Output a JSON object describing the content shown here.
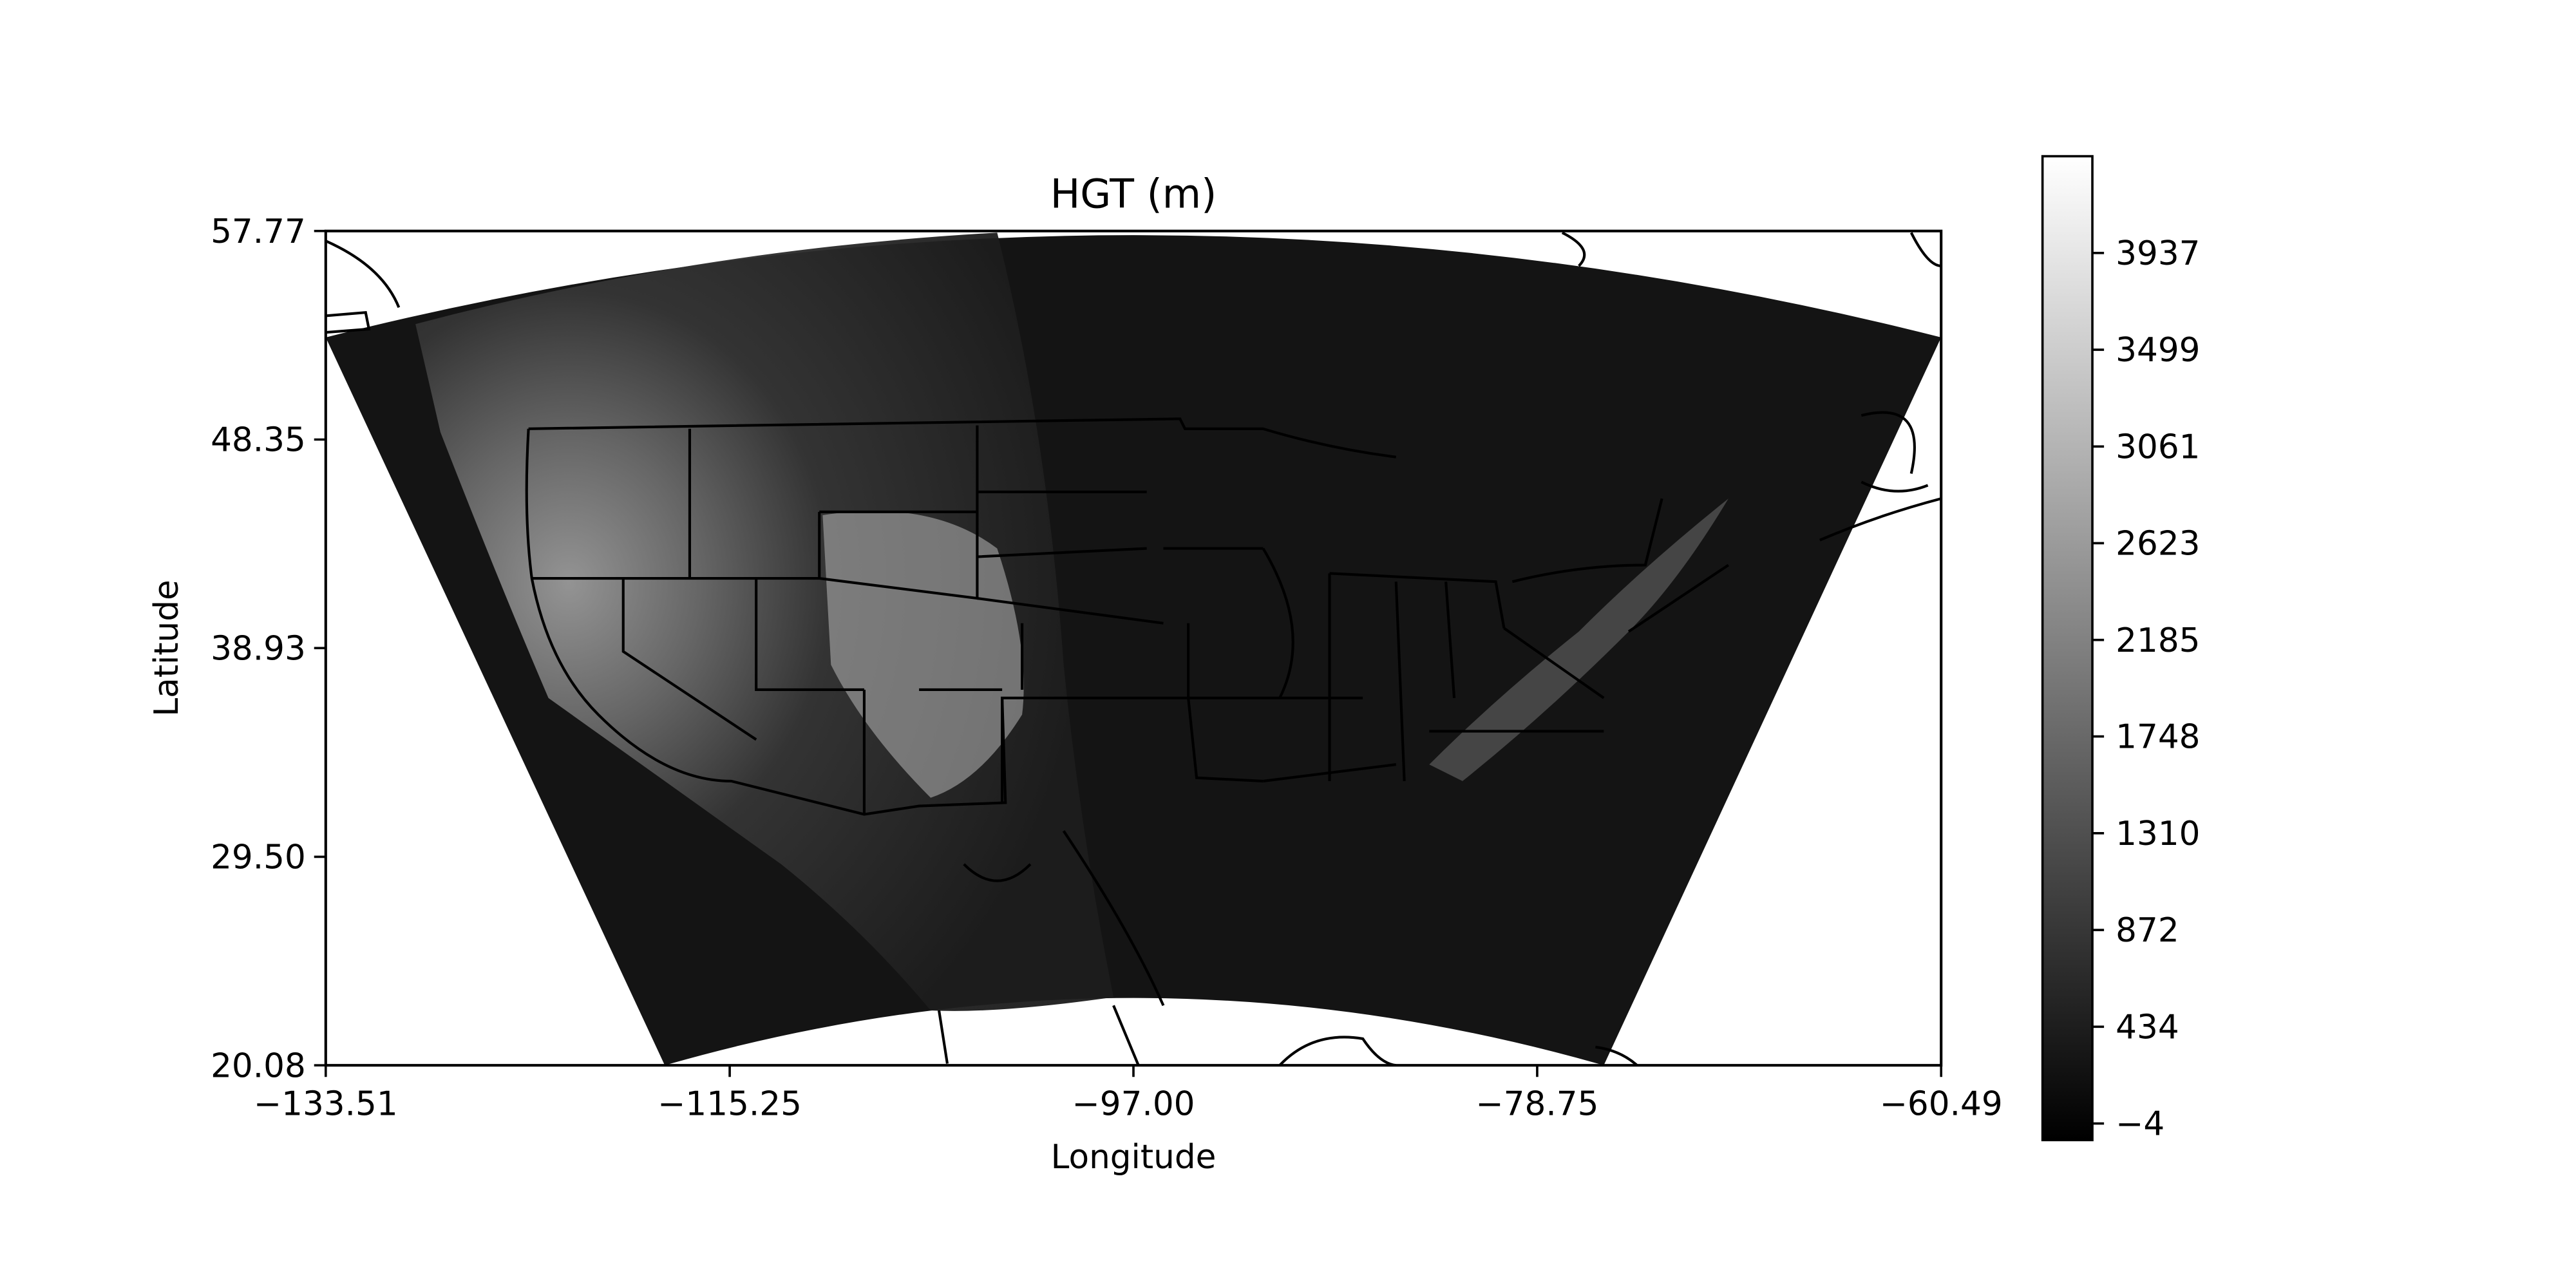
{
  "chart_data": {
    "type": "heatmap",
    "title": "HGT (m)",
    "xlabel": "Longitude",
    "ylabel": "Latitude",
    "xlim": [
      -133.51,
      -60.49
    ],
    "ylim": [
      20.08,
      57.77
    ],
    "xticks": [
      -133.51,
      -115.25,
      -97.0,
      -78.75,
      -60.49
    ],
    "xtick_labels": [
      "−133.51",
      "−115.25",
      "−97.00",
      "−78.75",
      "−60.49"
    ],
    "yticks": [
      20.08,
      29.5,
      38.93,
      48.35,
      57.77
    ],
    "ytick_labels": [
      "20.08",
      "29.50",
      "38.93",
      "48.35",
      "57.77"
    ],
    "colorbar": {
      "colormap": "gray",
      "range": [
        -4,
        4375
      ],
      "ticks": [
        -4,
        434,
        872,
        1310,
        1748,
        2185,
        2623,
        3061,
        3499,
        3937
      ],
      "tick_labels": [
        "−4",
        "434",
        "872",
        "1310",
        "1748",
        "2185",
        "2623",
        "3061",
        "3499",
        "3937"
      ]
    },
    "grid": false
  }
}
